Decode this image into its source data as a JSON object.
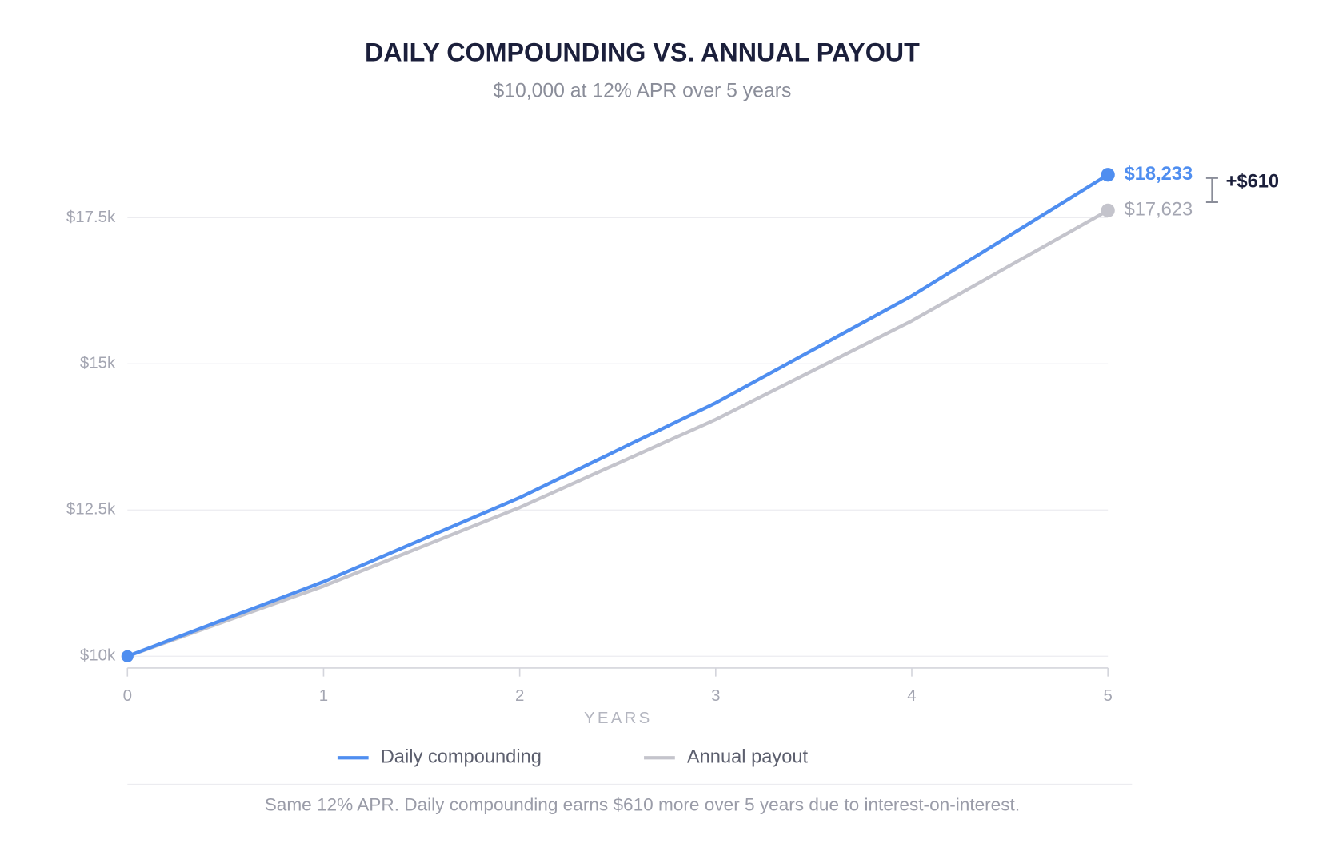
{
  "chart_data": {
    "type": "line",
    "title": "DAILY COMPOUNDING VS. ANNUAL PAYOUT",
    "subtitle": "$10,000 at 12% APR over 5 years",
    "x_label": "YEARS",
    "x": [
      0,
      1,
      2,
      3,
      4,
      5
    ],
    "xlim": [
      0,
      5
    ],
    "xticks": [
      0,
      1,
      2,
      3,
      4,
      5
    ],
    "ylim": [
      9800,
      18400
    ],
    "yticks": [
      {
        "value": 10000,
        "label": "$10k"
      },
      {
        "value": 12500,
        "label": "$12.5k"
      },
      {
        "value": 15000,
        "label": "$15k"
      },
      {
        "value": 17500,
        "label": "$17.5k"
      }
    ],
    "grid": true,
    "series": [
      {
        "name": "Daily compounding",
        "color": "#4f8ef0",
        "values": [
          10000,
          11275,
          12712,
          14333,
          16161,
          18233
        ],
        "value_labels": [
          null,
          null,
          null,
          null,
          null,
          "$18,233"
        ]
      },
      {
        "name": "Annual payout",
        "color": "#c4c4cc",
        "values": [
          10000,
          11200,
          12544,
          14049,
          15735,
          17623
        ],
        "value_labels": [
          null,
          null,
          null,
          null,
          null,
          "$17,623"
        ]
      }
    ],
    "annotation": "+$610",
    "footnote": "Same 12% APR. Daily compounding earns $610 more over 5 years due to interest-on-interest."
  }
}
